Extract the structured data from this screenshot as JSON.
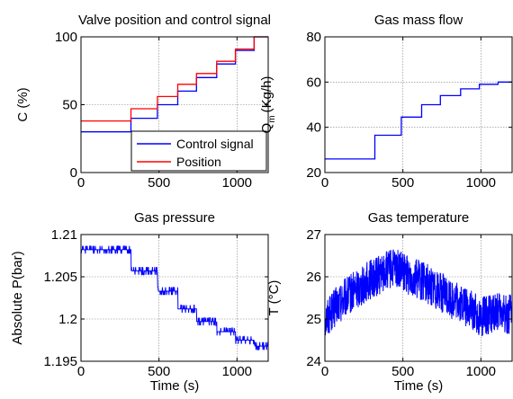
{
  "chart_data": [
    {
      "type": "line",
      "title": "Valve position and control signal",
      "xlabel": "",
      "ylabel": "C (%)",
      "xlim": [
        0,
        1200
      ],
      "ylim": [
        0,
        100
      ],
      "xticks": [
        "0",
        "500",
        "1000"
      ],
      "xtick_values": [
        0,
        500,
        1000
      ],
      "yticks": [
        "0",
        "50",
        "100"
      ],
      "ytick_values": [
        0,
        50,
        100
      ],
      "grid": true,
      "legend": {
        "placement": "bottom-right",
        "entries": [
          "Control signal",
          "Position"
        ]
      },
      "series": [
        {
          "name": "Control signal",
          "color": "#0000ff",
          "x": [
            0,
            320,
            320,
            490,
            490,
            620,
            620,
            740,
            740,
            870,
            870,
            990,
            990,
            1110,
            1110,
            1200
          ],
          "y": [
            30,
            30,
            40,
            40,
            50,
            50,
            60,
            60,
            70,
            70,
            80,
            80,
            90,
            90,
            100,
            100
          ]
        },
        {
          "name": "Position",
          "color": "#ff0000",
          "x": [
            0,
            320,
            320,
            490,
            490,
            620,
            620,
            740,
            740,
            870,
            870,
            990,
            990,
            1110,
            1110,
            1200
          ],
          "y": [
            38,
            38,
            47,
            47,
            56,
            56,
            65,
            65,
            73,
            73,
            82,
            82,
            91,
            91,
            100,
            100
          ]
        }
      ]
    },
    {
      "type": "line",
      "title": "Gas mass flow",
      "xlabel": "",
      "ylabel": "Q",
      "ylabel_sub": "m",
      "ylabel_unit": "(Kg/h)",
      "xlim": [
        0,
        1200
      ],
      "ylim": [
        20,
        80
      ],
      "xticks": [
        "0",
        "500",
        "1000"
      ],
      "xtick_values": [
        0,
        500,
        1000
      ],
      "yticks": [
        "20",
        "40",
        "60",
        "80"
      ],
      "ytick_values": [
        20,
        40,
        60,
        80
      ],
      "grid": true,
      "series": [
        {
          "color": "#0000ff",
          "x": [
            0,
            320,
            320,
            490,
            490,
            620,
            620,
            740,
            740,
            870,
            870,
            990,
            990,
            1110,
            1110,
            1200
          ],
          "y": [
            26,
            26,
            36.5,
            36.5,
            44.5,
            44.5,
            50,
            50,
            54,
            54,
            57,
            57,
            59,
            59,
            60,
            60
          ]
        }
      ]
    },
    {
      "type": "line",
      "title": "Gas pressure",
      "xlabel": "Time (s)",
      "ylabel": "Absolute P(bar)",
      "xlim": [
        0,
        1200
      ],
      "ylim": [
        1.195,
        1.21
      ],
      "xticks": [
        "0",
        "500",
        "1000"
      ],
      "xtick_values": [
        0,
        500,
        1000
      ],
      "yticks": [
        "1.195",
        "1.2",
        "1.205",
        "1.21"
      ],
      "ytick_values": [
        1.195,
        1.2,
        1.205,
        1.21
      ],
      "grid": true,
      "series": [
        {
          "color": "#0000ff",
          "x": [
            0,
            320,
            320,
            490,
            490,
            620,
            620,
            740,
            740,
            870,
            870,
            990,
            990,
            1110,
            1110,
            1200
          ],
          "y": [
            1.2082,
            1.2082,
            1.2057,
            1.2057,
            1.2033,
            1.2033,
            1.2012,
            1.2012,
            1.1997,
            1.1997,
            1.1985,
            1.1985,
            1.1975,
            1.1975,
            1.1968,
            1.1968
          ]
        }
      ]
    },
    {
      "type": "line",
      "title": "Gas temperature",
      "xlabel": "Time (s)",
      "ylabel": "T (°C)",
      "xlim": [
        0,
        1200
      ],
      "ylim": [
        24,
        27
      ],
      "xticks": [
        "0",
        "500",
        "1000"
      ],
      "xtick_values": [
        0,
        500,
        1000
      ],
      "yticks": [
        "24",
        "25",
        "26",
        "27"
      ],
      "ytick_values": [
        24,
        25,
        26,
        27
      ],
      "grid": true,
      "series": [
        {
          "color": "#0000ff",
          "x": [
            0,
            100,
            200,
            300,
            400,
            450,
            500,
            600,
            700,
            800,
            900,
            1000,
            1100,
            1200
          ],
          "y": [
            25.0,
            25.4,
            25.7,
            25.95,
            26.15,
            26.2,
            26.1,
            25.95,
            25.75,
            25.5,
            25.3,
            25.05,
            25.15,
            25.1
          ]
        }
      ]
    }
  ]
}
